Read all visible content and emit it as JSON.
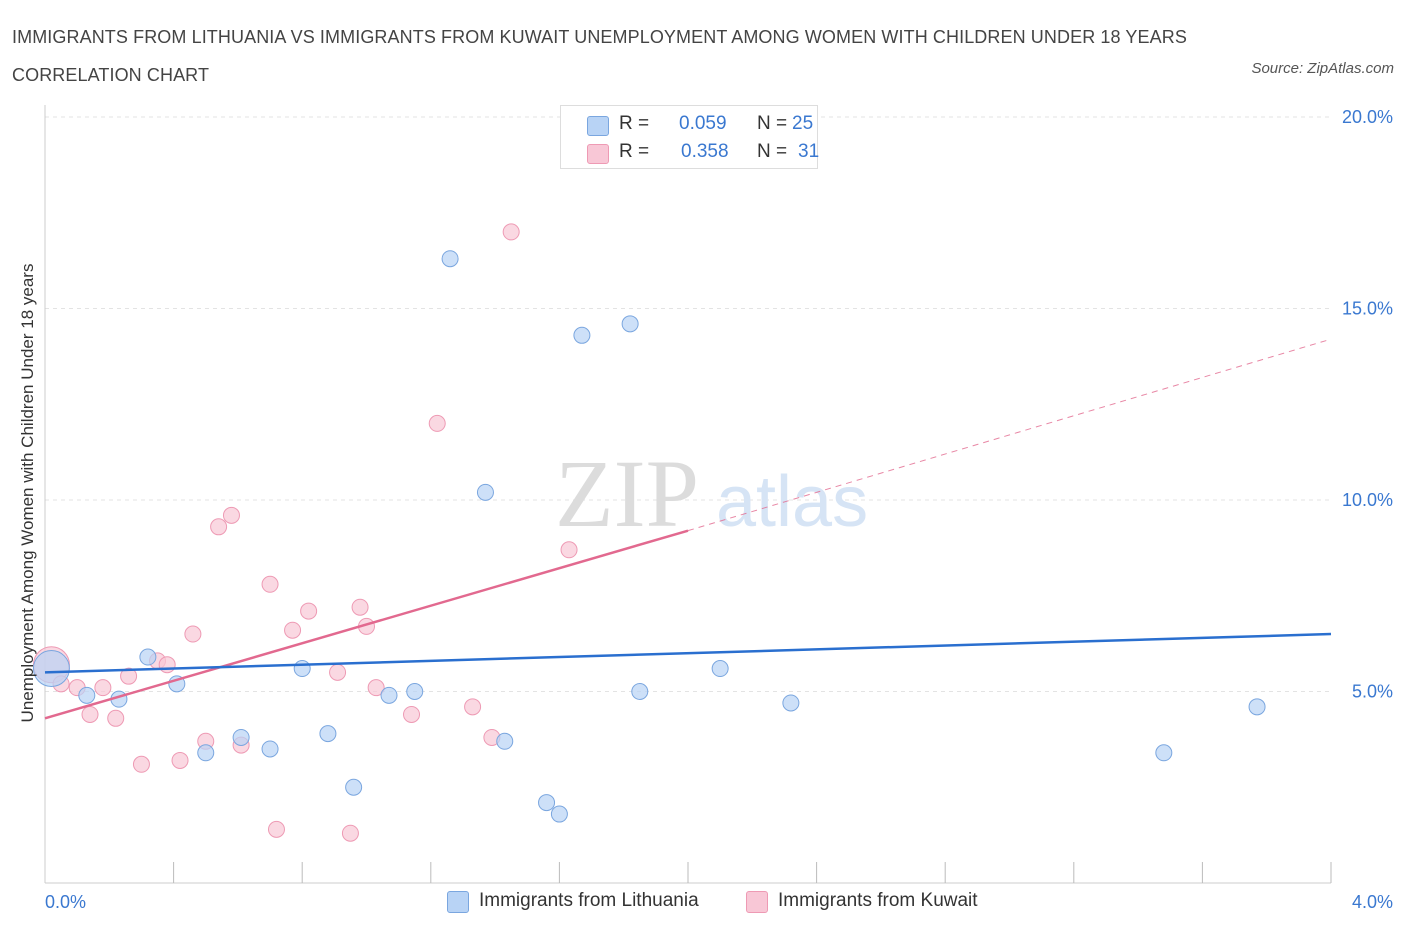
{
  "header": {
    "title": "IMMIGRANTS FROM LITHUANIA VS IMMIGRANTS FROM KUWAIT UNEMPLOYMENT AMONG WOMEN WITH CHILDREN UNDER 18 YEARS CORRELATION CHART",
    "source": "Source: ZipAtlas.com"
  },
  "watermark": {
    "zip": "ZIP",
    "atlas": "atlas"
  },
  "legend": {
    "r_label": "R =",
    "n_label": "N =",
    "items": [
      {
        "name": "Immigrants from Lithuania",
        "r": "0.059",
        "n": "25"
      },
      {
        "name": "Immigrants from Kuwait",
        "r": "0.358",
        "n": "31"
      }
    ]
  },
  "colors": {
    "lithuania_fill": "#b8d3f5",
    "lithuania_stroke": "#7aa6df",
    "lithuania_line": "#2a6fcf",
    "kuwait_fill": "#f8c7d6",
    "kuwait_stroke": "#ee9ab4",
    "kuwait_line": "#e2698f",
    "tick_text": "#3a78d0"
  },
  "chart_data": {
    "type": "scatter",
    "title": "IMMIGRANTS FROM LITHUANIA VS IMMIGRANTS FROM KUWAIT UNEMPLOYMENT AMONG WOMEN WITH CHILDREN UNDER 18 YEARS CORRELATION CHART",
    "xlabel": "",
    "ylabel": "Unemployment Among Women with Children Under 18 years",
    "xlim": [
      0,
      4
    ],
    "ylim": [
      0,
      20
    ],
    "x_tick_labels": [
      "0.0%",
      "4.0%"
    ],
    "y_ticks": [
      5,
      10,
      15,
      20
    ],
    "y_tick_labels": [
      "5.0%",
      "10.0%",
      "15.0%",
      "20.0%"
    ],
    "grid": true,
    "legend_position": "top-center",
    "series": [
      {
        "name": "Immigrants from Lithuania",
        "points": [
          [
            0.02,
            5.6
          ],
          [
            0.13,
            4.9
          ],
          [
            0.23,
            4.8
          ],
          [
            0.32,
            5.9
          ],
          [
            0.41,
            5.2
          ],
          [
            0.5,
            3.4
          ],
          [
            0.61,
            3.8
          ],
          [
            0.7,
            3.5
          ],
          [
            0.8,
            5.6
          ],
          [
            0.88,
            3.9
          ],
          [
            0.96,
            2.5
          ],
          [
            1.07,
            4.9
          ],
          [
            1.15,
            5.0
          ],
          [
            1.26,
            16.3
          ],
          [
            1.37,
            10.2
          ],
          [
            1.43,
            3.7
          ],
          [
            1.56,
            2.1
          ],
          [
            1.6,
            1.8
          ],
          [
            1.67,
            14.3
          ],
          [
            1.82,
            14.6
          ],
          [
            1.85,
            5.0
          ],
          [
            2.1,
            5.6
          ],
          [
            2.32,
            4.7
          ],
          [
            3.48,
            3.4
          ],
          [
            3.77,
            4.6
          ]
        ],
        "trend": {
          "x0": 0,
          "y0": 5.5,
          "x1": 4.0,
          "y1": 6.5
        }
      },
      {
        "name": "Immigrants from Kuwait",
        "points": [
          [
            0.02,
            5.7
          ],
          [
            0.05,
            5.2
          ],
          [
            0.1,
            5.1
          ],
          [
            0.14,
            4.4
          ],
          [
            0.18,
            5.1
          ],
          [
            0.22,
            4.3
          ],
          [
            0.26,
            5.4
          ],
          [
            0.3,
            3.1
          ],
          [
            0.35,
            5.8
          ],
          [
            0.38,
            5.7
          ],
          [
            0.42,
            3.2
          ],
          [
            0.46,
            6.5
          ],
          [
            0.5,
            3.7
          ],
          [
            0.54,
            9.3
          ],
          [
            0.58,
            9.6
          ],
          [
            0.61,
            3.6
          ],
          [
            0.7,
            7.8
          ],
          [
            0.72,
            1.4
          ],
          [
            0.77,
            6.6
          ],
          [
            0.82,
            7.1
          ],
          [
            0.91,
            5.5
          ],
          [
            0.95,
            1.3
          ],
          [
            0.98,
            7.2
          ],
          [
            1.0,
            6.7
          ],
          [
            1.03,
            5.1
          ],
          [
            1.14,
            4.4
          ],
          [
            1.22,
            12.0
          ],
          [
            1.33,
            4.6
          ],
          [
            1.39,
            3.8
          ],
          [
            1.45,
            17.0
          ],
          [
            1.63,
            8.7
          ]
        ],
        "trend": {
          "x0": 0,
          "y0": 4.3,
          "x1": 2.0,
          "y1": 9.2,
          "dashed_to_x": 4.0,
          "dashed_to_y": 14.2
        }
      }
    ]
  }
}
